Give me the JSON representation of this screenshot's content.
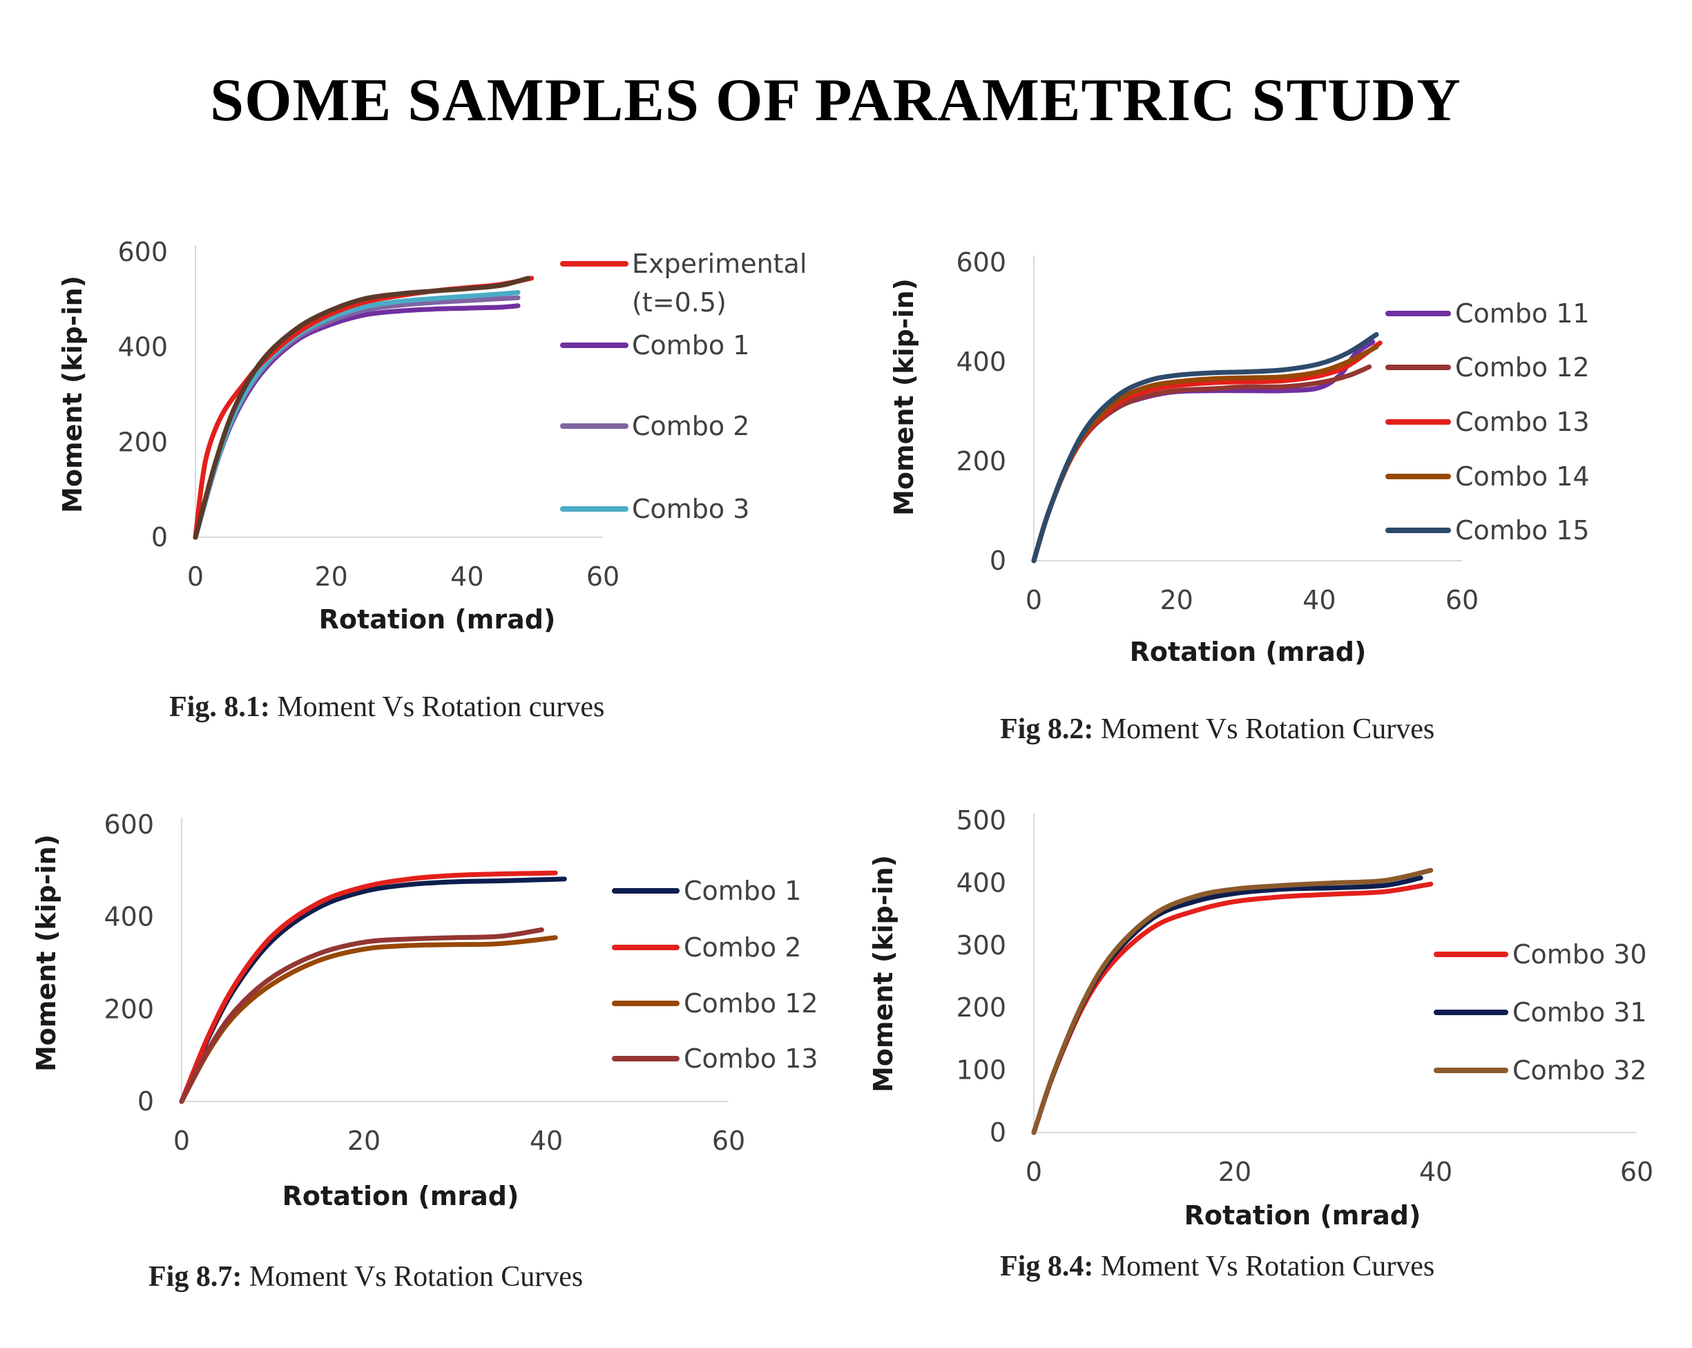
{
  "page_title": "SOME SAMPLES OF PARAMETRIC STUDY",
  "chart_data": [
    {
      "type": "line",
      "caption_fig": "Fig. 8.1:",
      "caption_text": " Moment Vs Rotation curves",
      "xlabel": "Rotation (mrad)",
      "ylabel": "Moment (kip-in)",
      "xlim": [
        0,
        60
      ],
      "ylim": [
        0,
        600
      ],
      "xticks": [
        "0",
        "20",
        "40",
        "60"
      ],
      "yticks": [
        "0",
        "200",
        "400",
        "600"
      ],
      "legend_position": "right",
      "series": [
        {
          "name": "Combo 1",
          "color": "#7030a0",
          "x": [
            0,
            3,
            6,
            10,
            15,
            20,
            25,
            30,
            35,
            40,
            45,
            47.5
          ],
          "y": [
            0,
            150,
            260,
            350,
            415,
            448,
            468,
            476,
            480,
            482,
            484,
            487
          ]
        },
        {
          "name": "Combo 2",
          "color": "#8064a2",
          "x": [
            0,
            3,
            6,
            10,
            15,
            20,
            25,
            30,
            35,
            40,
            45,
            47.5
          ],
          "y": [
            0,
            150,
            265,
            355,
            420,
            455,
            478,
            488,
            494,
            498,
            502,
            504
          ]
        },
        {
          "name": "Combo 3",
          "color": "#4bacc6",
          "x": [
            0,
            3,
            6,
            10,
            15,
            20,
            25,
            30,
            35,
            40,
            45,
            47.5
          ],
          "y": [
            0,
            152,
            268,
            360,
            425,
            462,
            485,
            496,
            502,
            507,
            512,
            515
          ]
        },
        {
          "name": "Experimental\n(t=0.5)",
          "color": "#e3201b",
          "x": [
            0,
            1,
            2,
            4,
            7,
            10,
            15,
            20,
            25,
            30,
            35,
            40,
            45,
            49.5
          ],
          "y": [
            0,
            120,
            190,
            260,
            320,
            370,
            430,
            470,
            495,
            508,
            518,
            525,
            532,
            545
          ]
        },
        {
          "name": "",
          "color": "#5b3a29",
          "x": [
            0,
            3,
            6,
            10,
            15,
            20,
            25,
            30,
            35,
            40,
            45,
            49
          ],
          "y": [
            0,
            160,
            280,
            375,
            440,
            478,
            502,
            512,
            518,
            523,
            530,
            545
          ]
        }
      ]
    },
    {
      "type": "line",
      "caption_fig": "Fig 8.2:",
      "caption_text": " Moment Vs Rotation Curves",
      "xlabel": "Rotation (mrad)",
      "ylabel": "Moment (kip-in)",
      "xlim": [
        0,
        60
      ],
      "ylim": [
        0,
        600
      ],
      "xticks": [
        "0",
        "20",
        "40",
        "60"
      ],
      "yticks": [
        "0",
        "200",
        "400",
        "600"
      ],
      "legend_position": "right",
      "series": [
        {
          "name": "Combo 11",
          "color": "#7030a0",
          "x": [
            0,
            2,
            5,
            8,
            12,
            16,
            20,
            25,
            30,
            35,
            40,
            43,
            45,
            47.5
          ],
          "y": [
            0,
            95,
            200,
            265,
            310,
            330,
            340,
            342,
            342,
            342,
            348,
            375,
            415,
            440
          ]
        },
        {
          "name": "Combo 12",
          "color": "#943634",
          "x": [
            0,
            2,
            5,
            8,
            12,
            16,
            20,
            25,
            30,
            35,
            40,
            44,
            47
          ],
          "y": [
            0,
            95,
            200,
            265,
            310,
            332,
            342,
            346,
            350,
            350,
            358,
            372,
            390
          ]
        },
        {
          "name": "Combo 13",
          "color": "#e3201b",
          "x": [
            0,
            2,
            5,
            8,
            12,
            16,
            20,
            25,
            30,
            35,
            40,
            44,
            48.5
          ],
          "y": [
            0,
            95,
            200,
            268,
            318,
            342,
            352,
            358,
            360,
            362,
            372,
            392,
            438
          ]
        },
        {
          "name": "Combo 14",
          "color": "#974806",
          "x": [
            0,
            2,
            5,
            8,
            12,
            16,
            20,
            25,
            30,
            35,
            40,
            44,
            48
          ],
          "y": [
            0,
            95,
            202,
            272,
            325,
            350,
            360,
            366,
            368,
            370,
            380,
            400,
            430
          ]
        },
        {
          "name": "Combo 15",
          "color": "#2e4a6b",
          "x": [
            0,
            2,
            5,
            8,
            12,
            16,
            20,
            25,
            30,
            35,
            40,
            44,
            48
          ],
          "y": [
            0,
            95,
            205,
            280,
            335,
            362,
            373,
            378,
            380,
            384,
            396,
            418,
            455
          ]
        }
      ]
    },
    {
      "type": "line",
      "caption_fig": "Fig 8.7:",
      "caption_text": " Moment Vs Rotation Curves",
      "xlabel": "Rotation (mrad)",
      "ylabel": "Moment (kip-in)",
      "xlim": [
        0,
        60
      ],
      "ylim": [
        0,
        600
      ],
      "xticks": [
        "0",
        "20",
        "40",
        "60"
      ],
      "yticks": [
        "0",
        "200",
        "400",
        "600"
      ],
      "legend_position": "right",
      "series": [
        {
          "name": "Combo 1",
          "color": "#0d1f4f",
          "x": [
            0,
            3,
            6,
            10,
            15,
            20,
            25,
            30,
            35,
            42
          ],
          "y": [
            0,
            140,
            250,
            350,
            420,
            455,
            470,
            476,
            478,
            482
          ]
        },
        {
          "name": "Combo 2",
          "color": "#e3201b",
          "x": [
            0,
            3,
            6,
            10,
            15,
            20,
            25,
            30,
            35,
            41
          ],
          "y": [
            0,
            145,
            258,
            360,
            430,
            465,
            482,
            490,
            493,
            495
          ]
        },
        {
          "name": "Combo 12",
          "color": "#974806",
          "x": [
            0,
            3,
            6,
            10,
            15,
            20,
            25,
            30,
            35,
            41
          ],
          "y": [
            0,
            110,
            190,
            255,
            305,
            330,
            338,
            340,
            342,
            355
          ]
        },
        {
          "name": "Combo 13",
          "color": "#943634",
          "x": [
            0,
            3,
            6,
            10,
            15,
            20,
            25,
            30,
            35,
            39.5
          ],
          "y": [
            0,
            115,
            200,
            270,
            320,
            345,
            352,
            355,
            358,
            372
          ]
        }
      ]
    },
    {
      "type": "line",
      "caption_fig": "Fig 8.4:",
      "caption_text": " Moment Vs Rotation Curves",
      "xlabel": "Rotation (mrad)",
      "ylabel": "Moment (kip-in)",
      "xlim": [
        0,
        60
      ],
      "ylim": [
        0,
        500
      ],
      "xticks": [
        "0",
        "20",
        "40",
        "60"
      ],
      "yticks": [
        "0",
        "100",
        "200",
        "300",
        "400",
        "500"
      ],
      "legend_position": "right",
      "series": [
        {
          "name": "Combo 30",
          "color": "#e3201b",
          "x": [
            0,
            2,
            5,
            8,
            12,
            16,
            20,
            25,
            30,
            35,
            39.5
          ],
          "y": [
            0,
            95,
            205,
            275,
            330,
            355,
            370,
            378,
            382,
            386,
            398
          ]
        },
        {
          "name": "Combo 31",
          "color": "#0d1f4f",
          "x": [
            0,
            2,
            5,
            8,
            12,
            16,
            20,
            25,
            30,
            35,
            38.5
          ],
          "y": [
            0,
            96,
            210,
            285,
            345,
            370,
            383,
            390,
            392,
            396,
            408
          ]
        },
        {
          "name": "Combo 32",
          "color": "#8c5a2b",
          "x": [
            0,
            2,
            5,
            8,
            12,
            16,
            20,
            25,
            30,
            35,
            39.5
          ],
          "y": [
            0,
            97,
            212,
            290,
            350,
            378,
            390,
            396,
            400,
            404,
            420
          ]
        }
      ]
    }
  ]
}
